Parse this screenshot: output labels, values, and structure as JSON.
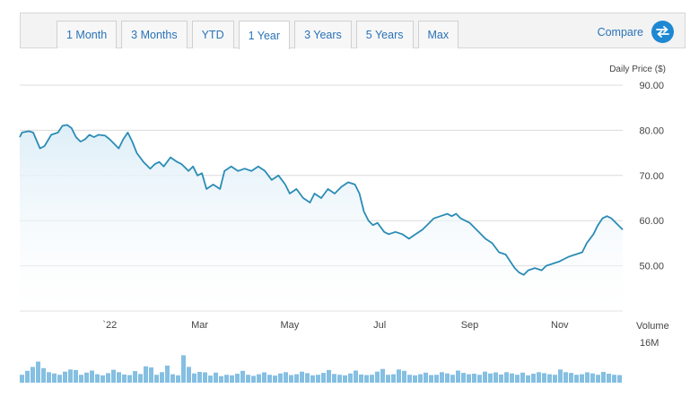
{
  "toolbar": {
    "tabs": [
      {
        "label": "1 Month"
      },
      {
        "label": "3 Months"
      },
      {
        "label": "YTD"
      },
      {
        "label": "1 Year",
        "active": true
      },
      {
        "label": "3 Years"
      },
      {
        "label": "5 Years"
      },
      {
        "label": "Max"
      }
    ],
    "compare_label": "Compare",
    "compare_icon": "swap-arrows-icon"
  },
  "colors": {
    "line": "#2a8cb5",
    "area_top": "#dcedf7",
    "volume": "#85bfe2",
    "grid": "#dcdcdc",
    "accent": "#1e88d2"
  },
  "chart_data": {
    "type": "line",
    "ylabel": "Daily Price ($)",
    "y_ticks": [
      "90.00",
      "80.00",
      "70.00",
      "60.00",
      "50.00"
    ],
    "ylim": [
      40,
      90
    ],
    "x_tick_labels": [
      "`22",
      "Mar",
      "May",
      "Jul",
      "Sep",
      "Nov"
    ],
    "x_tick_months": [
      2.0,
      4.0,
      6.0,
      8.0,
      10.0,
      12.0
    ],
    "xlim": [
      0,
      13.4
    ],
    "series": [
      {
        "values": [
          [
            0.0,
            78.5
          ],
          [
            0.05,
            79.5
          ],
          [
            0.2,
            79.8
          ],
          [
            0.3,
            79.5
          ],
          [
            0.45,
            76.0
          ],
          [
            0.55,
            76.5
          ],
          [
            0.7,
            79.0
          ],
          [
            0.85,
            79.5
          ],
          [
            0.95,
            81.0
          ],
          [
            1.05,
            81.2
          ],
          [
            1.15,
            80.5
          ],
          [
            1.25,
            78.5
          ],
          [
            1.35,
            77.5
          ],
          [
            1.45,
            78.0
          ],
          [
            1.55,
            79.0
          ],
          [
            1.65,
            78.5
          ],
          [
            1.75,
            79.0
          ],
          [
            1.9,
            78.8
          ],
          [
            2.0,
            78.0
          ],
          [
            2.1,
            77.0
          ],
          [
            2.2,
            76.0
          ],
          [
            2.3,
            78.0
          ],
          [
            2.4,
            79.5
          ],
          [
            2.5,
            77.5
          ],
          [
            2.6,
            75.0
          ],
          [
            2.75,
            73.0
          ],
          [
            2.9,
            71.5
          ],
          [
            3.0,
            72.5
          ],
          [
            3.1,
            73.0
          ],
          [
            3.2,
            72.0
          ],
          [
            3.35,
            74.0
          ],
          [
            3.5,
            73.0
          ],
          [
            3.6,
            72.5
          ],
          [
            3.75,
            71.0
          ],
          [
            3.85,
            72.0
          ],
          [
            3.95,
            70.0
          ],
          [
            4.05,
            70.5
          ],
          [
            4.15,
            67.0
          ],
          [
            4.3,
            68.0
          ],
          [
            4.45,
            67.0
          ],
          [
            4.55,
            71.0
          ],
          [
            4.7,
            72.0
          ],
          [
            4.85,
            71.0
          ],
          [
            5.0,
            71.5
          ],
          [
            5.15,
            71.0
          ],
          [
            5.3,
            72.0
          ],
          [
            5.45,
            71.0
          ],
          [
            5.6,
            69.0
          ],
          [
            5.75,
            70.0
          ],
          [
            5.9,
            68.0
          ],
          [
            6.0,
            66.0
          ],
          [
            6.15,
            67.0
          ],
          [
            6.3,
            65.0
          ],
          [
            6.45,
            64.0
          ],
          [
            6.55,
            66.0
          ],
          [
            6.7,
            65.0
          ],
          [
            6.85,
            67.0
          ],
          [
            7.0,
            66.0
          ],
          [
            7.15,
            67.5
          ],
          [
            7.3,
            68.5
          ],
          [
            7.45,
            68.0
          ],
          [
            7.55,
            66.0
          ],
          [
            7.65,
            62.0
          ],
          [
            7.75,
            60.0
          ],
          [
            7.85,
            59.0
          ],
          [
            7.95,
            59.5
          ],
          [
            8.1,
            57.5
          ],
          [
            8.2,
            57.0
          ],
          [
            8.35,
            57.5
          ],
          [
            8.5,
            57.0
          ],
          [
            8.65,
            56.0
          ],
          [
            8.8,
            57.0
          ],
          [
            8.95,
            58.0
          ],
          [
            9.05,
            59.0
          ],
          [
            9.2,
            60.5
          ],
          [
            9.35,
            61.0
          ],
          [
            9.5,
            61.5
          ],
          [
            9.6,
            61.0
          ],
          [
            9.7,
            61.5
          ],
          [
            9.8,
            60.5
          ],
          [
            9.9,
            60.0
          ],
          [
            10.0,
            59.5
          ],
          [
            10.1,
            58.5
          ],
          [
            10.2,
            57.5
          ],
          [
            10.35,
            56.0
          ],
          [
            10.5,
            55.0
          ],
          [
            10.65,
            53.0
          ],
          [
            10.8,
            52.5
          ],
          [
            10.9,
            51.0
          ],
          [
            11.0,
            49.5
          ],
          [
            11.1,
            48.5
          ],
          [
            11.2,
            48.0
          ],
          [
            11.3,
            49.0
          ],
          [
            11.45,
            49.5
          ],
          [
            11.6,
            49.0
          ],
          [
            11.7,
            50.0
          ],
          [
            11.85,
            50.5
          ],
          [
            12.0,
            51.0
          ],
          [
            12.1,
            51.5
          ],
          [
            12.2,
            52.0
          ],
          [
            12.35,
            52.5
          ],
          [
            12.5,
            53.0
          ],
          [
            12.6,
            55.0
          ],
          [
            12.75,
            57.0
          ],
          [
            12.85,
            59.0
          ],
          [
            12.95,
            60.5
          ],
          [
            13.05,
            61.0
          ],
          [
            13.15,
            60.5
          ],
          [
            13.25,
            59.5
          ],
          [
            13.35,
            58.5
          ],
          [
            13.4,
            58.0
          ]
        ]
      }
    ],
    "volume": {
      "label": "Volume",
      "scale_label": "16M",
      "ylim": [
        0,
        16
      ],
      "values": [
        3.0,
        4.5,
        6.0,
        8.0,
        5.5,
        4.0,
        3.5,
        3.0,
        4.2,
        5.0,
        4.8,
        3.0,
        3.8,
        4.6,
        3.2,
        2.8,
        3.6,
        4.9,
        4.0,
        3.1,
        2.9,
        4.4,
        3.3,
        6.2,
        5.8,
        3.0,
        4.0,
        6.5,
        3.2,
        2.8,
        10.4,
        6.0,
        3.5,
        4.1,
        3.9,
        2.7,
        3.8,
        2.5,
        3.0,
        2.8,
        3.4,
        4.5,
        3.0,
        2.6,
        3.2,
        3.9,
        3.0,
        2.7,
        3.5,
        4.0,
        2.9,
        3.2,
        4.2,
        3.6,
        2.8,
        3.0,
        3.7,
        4.8,
        3.3,
        3.0,
        2.8,
        3.5,
        4.6,
        3.1,
        2.9,
        3.0,
        4.2,
        5.2,
        3.0,
        3.2,
        5.0,
        4.5,
        3.0,
        2.8,
        3.2,
        3.8,
        2.9,
        3.0,
        4.0,
        3.5,
        3.0,
        4.6,
        3.7,
        3.2,
        3.4,
        3.0,
        4.2,
        3.5,
        3.9,
        3.1,
        4.0,
        3.5,
        3.0,
        3.8,
        2.8,
        3.4,
        4.0,
        3.6,
        3.2,
        3.0,
        5.0,
        4.0,
        3.7,
        3.0,
        3.2,
        3.9,
        3.5,
        3.0,
        4.1,
        3.4,
        3.0,
        2.9
      ]
    }
  }
}
